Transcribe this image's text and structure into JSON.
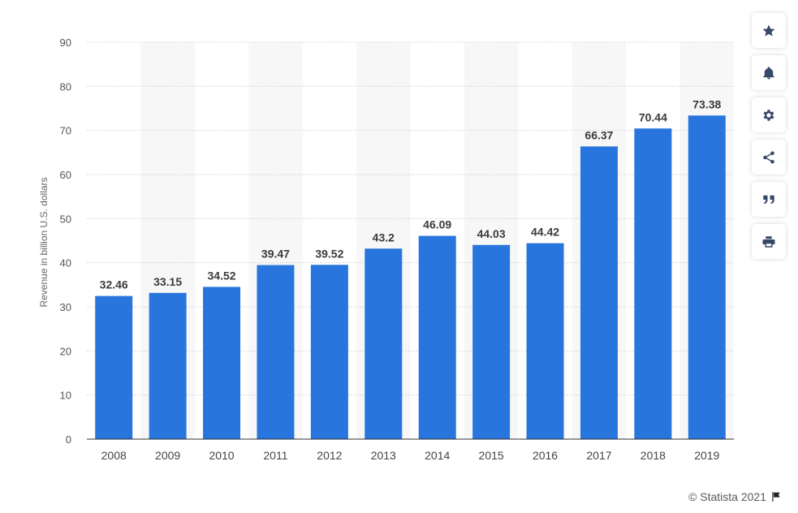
{
  "toolbar": {
    "buttons": [
      {
        "icon": "star-icon"
      },
      {
        "icon": "bell-icon"
      },
      {
        "icon": "gear-icon"
      },
      {
        "icon": "share-icon"
      },
      {
        "icon": "quote-icon"
      },
      {
        "icon": "print-icon"
      }
    ]
  },
  "credit": {
    "text": "© Statista 2021",
    "icon": "flag-icon"
  },
  "chart_data": {
    "type": "bar",
    "categories": [
      "2008",
      "2009",
      "2010",
      "2011",
      "2012",
      "2013",
      "2014",
      "2015",
      "2016",
      "2017",
      "2018",
      "2019"
    ],
    "values": [
      32.46,
      33.15,
      34.52,
      39.47,
      39.52,
      43.2,
      46.09,
      44.03,
      44.42,
      66.37,
      70.44,
      73.38
    ],
    "value_labels": [
      "32.46",
      "33.15",
      "34.52",
      "39.47",
      "39.52",
      "43.2",
      "46.09",
      "44.03",
      "44.42",
      "66.37",
      "70.44",
      "73.38"
    ],
    "ylabel": "Revenue in billion U.S. dollars",
    "ylim": [
      0,
      90
    ],
    "yticks": [
      0,
      10,
      20,
      30,
      40,
      50,
      60,
      70,
      80,
      90
    ],
    "grid": true,
    "colors": {
      "bar": "#2876dd",
      "band": "#f7f7f7",
      "grid": "#d0d0d0",
      "label": "#3a3a3a"
    }
  }
}
